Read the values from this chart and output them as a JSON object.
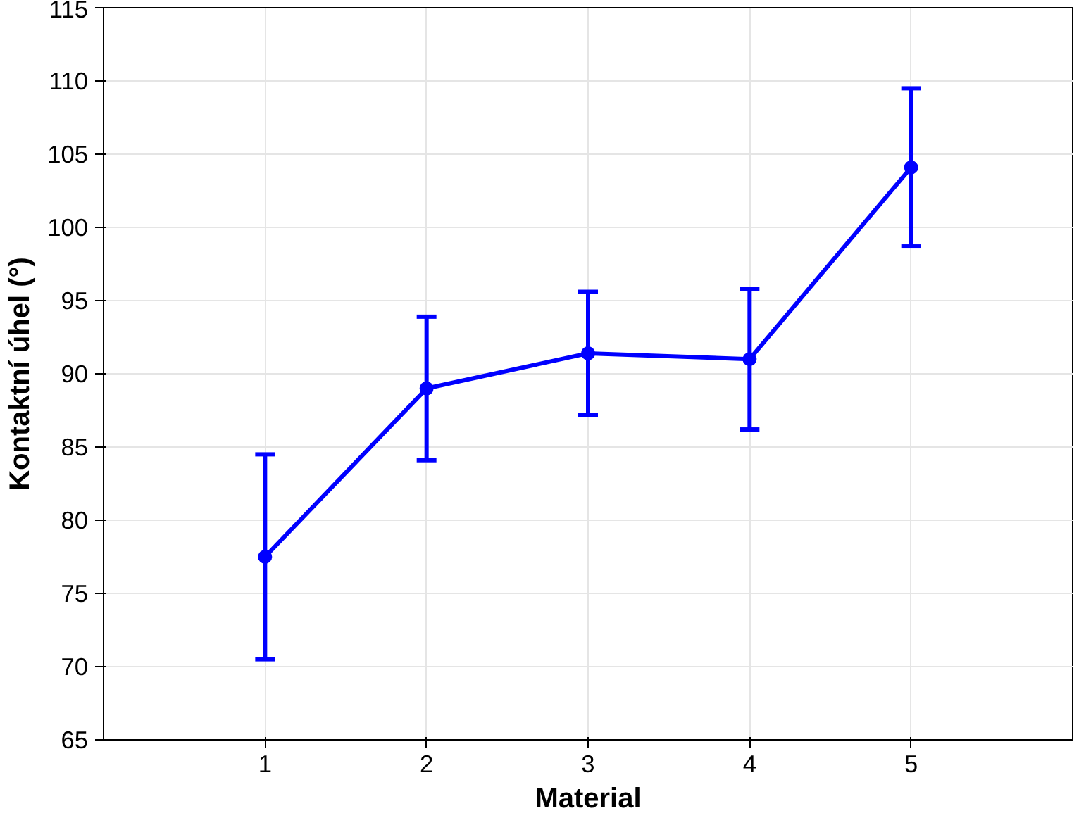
{
  "chart_data": {
    "type": "line",
    "xlabel": "Material",
    "ylabel": "Kontaktní úhel (°)",
    "x": [
      1,
      2,
      3,
      4,
      5
    ],
    "series": [
      {
        "color": "#0000ff",
        "values": [
          77.5,
          89.0,
          91.4,
          91.0,
          104.1
        ],
        "errors": [
          7.0,
          4.9,
          4.2,
          4.8,
          5.4
        ]
      }
    ],
    "xlim": [
      0,
      6
    ],
    "xticks": [
      1,
      2,
      3,
      4,
      5
    ],
    "ylim": [
      65,
      115
    ],
    "yticks": [
      65,
      70,
      75,
      80,
      85,
      90,
      95,
      100,
      105,
      110,
      115
    ],
    "grid": true,
    "marker": "circle",
    "line_style": "solid"
  }
}
